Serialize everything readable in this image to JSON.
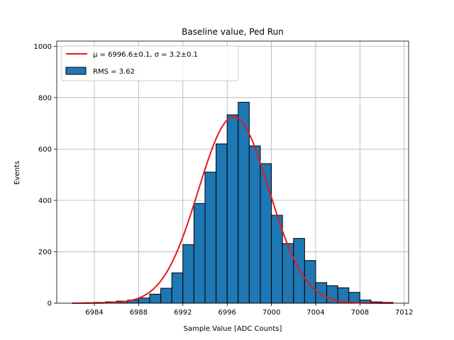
{
  "chart_data": {
    "type": "bar",
    "title": "Baseline value, Ped Run",
    "xlabel": "Sample Value [ADC Counts]",
    "ylabel": "Events",
    "xlim": [
      6980.6,
      7012.4
    ],
    "ylim": [
      0,
      1020
    ],
    "grid": true,
    "x_ticks": [
      6984,
      6988,
      6992,
      6996,
      7000,
      7004,
      7008,
      7012
    ],
    "y_ticks": [
      0,
      200,
      400,
      600,
      800,
      1000
    ],
    "bin_width": 1.0,
    "bins": [
      {
        "x0": 6982,
        "count": 1
      },
      {
        "x0": 6983,
        "count": 2
      },
      {
        "x0": 6984,
        "count": 3
      },
      {
        "x0": 6985,
        "count": 5
      },
      {
        "x0": 6986,
        "count": 8
      },
      {
        "x0": 6987,
        "count": 12
      },
      {
        "x0": 6988,
        "count": 20
      },
      {
        "x0": 6989,
        "count": 35
      },
      {
        "x0": 6990,
        "count": 58
      },
      {
        "x0": 6991,
        "count": 118
      },
      {
        "x0": 6992,
        "count": 228
      },
      {
        "x0": 6993,
        "count": 388
      },
      {
        "x0": 6994,
        "count": 510
      },
      {
        "x0": 6995,
        "count": 620
      },
      {
        "x0": 6996,
        "count": 733
      },
      {
        "x0": 6997,
        "count": 782
      },
      {
        "x0": 6998,
        "count": 612
      },
      {
        "x0": 6999,
        "count": 543
      },
      {
        "x0": 7000,
        "count": 342
      },
      {
        "x0": 7001,
        "count": 232
      },
      {
        "x0": 7002,
        "count": 252
      },
      {
        "x0": 7003,
        "count": 166
      },
      {
        "x0": 7004,
        "count": 80
      },
      {
        "x0": 7005,
        "count": 68
      },
      {
        "x0": 7006,
        "count": 60
      },
      {
        "x0": 7007,
        "count": 42
      },
      {
        "x0": 7008,
        "count": 12
      },
      {
        "x0": 7009,
        "count": 5
      },
      {
        "x0": 7010,
        "count": 3
      }
    ],
    "fit": {
      "label": "μ = 6996.6±0.1, σ = 3.2±0.1",
      "mu": 6996.6,
      "sigma": 3.2,
      "amplitude": 725,
      "x_range": [
        6982,
        7011
      ],
      "color": "#e41a1c"
    },
    "histogram_label": "RMS = 3.62",
    "bar_color": "#1f77b4",
    "legend_position": "upper-left"
  }
}
